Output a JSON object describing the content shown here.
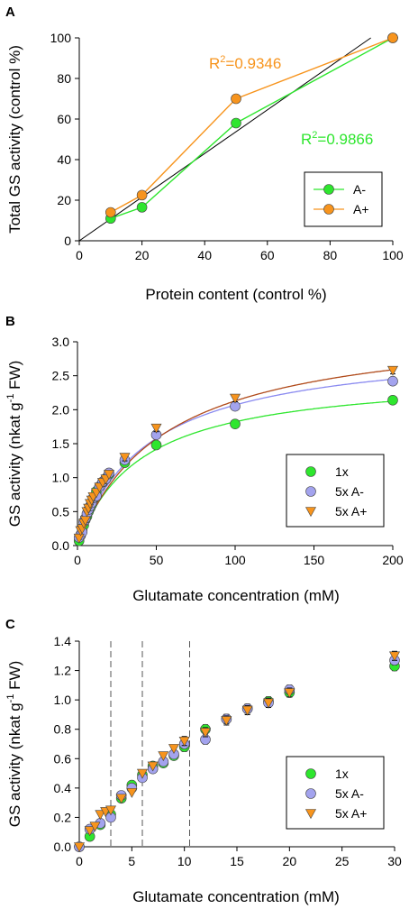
{
  "panels": {
    "A": {
      "label": "A"
    },
    "B": {
      "label": "B"
    },
    "C": {
      "label": "C"
    }
  },
  "chart_data": [
    {
      "id": "A",
      "type": "line",
      "xlabel": "Protein content (control %)",
      "ylabel": "Total GS activity (control %)",
      "xlim": [
        0,
        100
      ],
      "ylim": [
        0,
        100
      ],
      "xticks": [
        0,
        20,
        40,
        60,
        80,
        100
      ],
      "yticks": [
        0,
        20,
        40,
        60,
        80,
        100
      ],
      "series": [
        {
          "name": "A-",
          "color": "#2ee62e",
          "marker": "circle",
          "points": [
            [
              10,
              11
            ],
            [
              20,
              16.5
            ],
            [
              50,
              58
            ],
            [
              100,
              100
            ]
          ],
          "errors": [
            1.5,
            1.2,
            1.5,
            0.8
          ]
        },
        {
          "name": "A+",
          "color": "#f7941d",
          "marker": "circle",
          "points": [
            [
              10,
              14
            ],
            [
              20,
              22.5
            ],
            [
              50,
              70
            ],
            [
              100,
              100
            ]
          ],
          "errors": [
            1.5,
            1.5,
            1.2,
            0.8
          ]
        }
      ],
      "reference_line": {
        "color": "#000000",
        "from": [
          0,
          0
        ],
        "to": [
          93,
          100
        ]
      },
      "annotations": [
        {
          "text_base": "R",
          "sup": "2",
          "text_rest": "=0.9346",
          "color": "#f7941d"
        },
        {
          "text_base": "R",
          "sup": "2",
          "text_rest": "=0.9866",
          "color": "#2ee62e"
        }
      ],
      "legend": {
        "placement": "bottom-right"
      }
    },
    {
      "id": "B",
      "type": "scatter",
      "xlabel": "Glutamate concentration (mM)",
      "ylabel_base": "GS activity (nkat g",
      "ylabel_sup": "-1",
      "ylabel_rest": " FW)",
      "xlim": [
        0,
        200
      ],
      "ylim": [
        0,
        3.0
      ],
      "xticks": [
        0,
        50,
        100,
        150,
        200
      ],
      "yticks": [
        "0.0",
        "0.5",
        "1.0",
        "1.5",
        "2.0",
        "2.5",
        "3.0"
      ],
      "series": [
        {
          "name": "1x",
          "color": "#2ee62e",
          "marker": "circle",
          "fit_color": "#2ee62e",
          "vmax": 2.55,
          "km": 40,
          "x": [
            1,
            2,
            3,
            4,
            5,
            6,
            7,
            8,
            9,
            10,
            12,
            14,
            16,
            18,
            20,
            30,
            50,
            100,
            200
          ],
          "y": [
            0.07,
            0.15,
            0.22,
            0.3,
            0.38,
            0.43,
            0.5,
            0.55,
            0.6,
            0.68,
            0.8,
            0.87,
            0.93,
            0.99,
            1.05,
            1.22,
            1.48,
            1.79,
            2.14
          ]
        },
        {
          "name": "5x A-",
          "color": "#a3a3ee",
          "marker": "circle",
          "fit_color": "#8a8af0",
          "vmax": 3.0,
          "km": 45,
          "x": [
            1,
            2,
            3,
            4,
            5,
            6,
            7,
            8,
            9,
            10,
            12,
            14,
            16,
            18,
            20,
            30,
            50,
            100,
            200
          ],
          "y": [
            0.12,
            0.16,
            0.2,
            0.35,
            0.4,
            0.47,
            0.53,
            0.58,
            0.63,
            0.7,
            0.73,
            0.87,
            0.94,
            0.98,
            1.07,
            1.26,
            1.63,
            2.05,
            2.42
          ]
        },
        {
          "name": "5x A+",
          "color": "#f7941d",
          "marker": "triangle",
          "fit_color": "#b04a1a",
          "vmax": 3.3,
          "km": 55,
          "x": [
            1,
            2,
            3,
            4,
            5,
            6,
            7,
            8,
            9,
            10,
            12,
            14,
            16,
            18,
            20,
            30,
            50,
            100,
            200
          ],
          "y": [
            0.11,
            0.22,
            0.25,
            0.33,
            0.37,
            0.5,
            0.55,
            0.62,
            0.67,
            0.72,
            0.78,
            0.86,
            0.93,
            0.98,
            1.05,
            1.3,
            1.73,
            2.17,
            2.58
          ]
        }
      ],
      "legend": {
        "placement": "bottom-right"
      }
    },
    {
      "id": "C",
      "type": "scatter",
      "xlabel": "Glutamate concentration (mM)",
      "ylabel_base": "GS activity (nkat g",
      "ylabel_sup": "-1",
      "ylabel_rest": " FW)",
      "xlim": [
        0,
        30
      ],
      "ylim": [
        0,
        1.4
      ],
      "xticks": [
        0,
        5,
        10,
        15,
        20,
        25,
        30
      ],
      "yticks": [
        "0.0",
        "0.2",
        "0.4",
        "0.6",
        "0.8",
        "1.0",
        "1.2",
        "1.4"
      ],
      "vlines": [
        3,
        6,
        10.5
      ],
      "series": [
        {
          "name": "1x",
          "color": "#2ee62e",
          "marker": "circle",
          "x": [
            0,
            1,
            2,
            3,
            4,
            5,
            6,
            7,
            8,
            9,
            10,
            12,
            14,
            16,
            18,
            20,
            30
          ],
          "y": [
            0,
            0.07,
            0.15,
            0.22,
            0.33,
            0.42,
            0.49,
            0.55,
            0.57,
            0.62,
            0.68,
            0.8,
            0.87,
            0.94,
            0.99,
            1.05,
            1.23
          ]
        },
        {
          "name": "5x A-",
          "color": "#a3a3ee",
          "marker": "circle",
          "x": [
            0,
            1,
            2,
            3,
            4,
            5,
            6,
            7,
            8,
            9,
            10,
            12,
            14,
            16,
            18,
            20,
            30
          ],
          "y": [
            0,
            0.12,
            0.16,
            0.2,
            0.35,
            0.4,
            0.47,
            0.53,
            0.58,
            0.63,
            0.7,
            0.73,
            0.87,
            0.94,
            0.98,
            1.07,
            1.27
          ]
        },
        {
          "name": "5x A+",
          "color": "#f7941d",
          "marker": "triangle",
          "x": [
            0,
            1,
            1.5,
            2,
            2.5,
            3,
            4,
            5,
            6,
            7,
            8,
            9,
            10,
            12,
            14,
            16,
            18,
            20,
            30
          ],
          "y": [
            0,
            0.11,
            0.14,
            0.22,
            0.24,
            0.25,
            0.33,
            0.37,
            0.5,
            0.55,
            0.62,
            0.67,
            0.72,
            0.78,
            0.86,
            0.93,
            0.98,
            1.05,
            1.3
          ]
        }
      ],
      "legend": {
        "placement": "bottom-right"
      }
    }
  ]
}
